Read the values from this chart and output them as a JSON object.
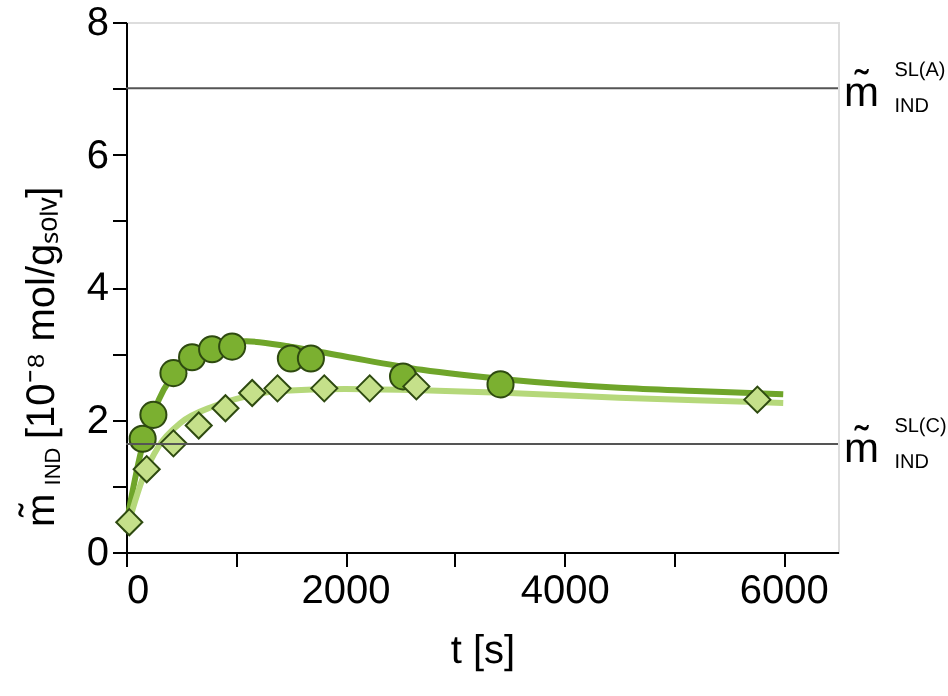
{
  "chart_data": {
    "type": "scatter",
    "xlabel": "t [s]",
    "ylabel": "m̃$_{IND}$ [10⁻⁸ mol/gₛₒₗᵥ]",
    "xlim": [
      0,
      6500
    ],
    "xticks": [
      0,
      {
        "value": 1000,
        "label": null
      },
      2000,
      {
        "value": 3000,
        "label": null
      },
      4000,
      {
        "value": 5000,
        "label": null
      },
      6000
    ],
    "ylim": [
      0,
      8
    ],
    "yticks": [
      0,
      {
        "value": 1,
        "label": null
      },
      2,
      {
        "value": 3,
        "label": null
      },
      4,
      {
        "value": 5,
        "label": null
      },
      6,
      {
        "value": 7,
        "label": null
      },
      8
    ],
    "grid": false,
    "series": [
      {
        "type": "line",
        "color": "#6fa52a",
        "x": [
          0,
          150,
          300,
          500,
          800,
          1100,
          1500,
          2000,
          2700,
          3500,
          4500,
          5200,
          6000
        ],
        "values": [
          0.4,
          1.6,
          2.3,
          2.8,
          3.1,
          3.18,
          3.1,
          2.95,
          2.75,
          2.6,
          2.48,
          2.43,
          2.38
        ]
      },
      {
        "type": "line",
        "color": "#b5d87a",
        "x": [
          0,
          150,
          300,
          500,
          800,
          1100,
          1400,
          2000,
          2700,
          3500,
          4500,
          5200,
          6000
        ],
        "values": [
          0.3,
          1.1,
          1.6,
          1.95,
          2.2,
          2.35,
          2.43,
          2.46,
          2.44,
          2.4,
          2.33,
          2.29,
          2.25
        ]
      },
      {
        "marker": "circle",
        "color": "#7bb030",
        "x": [
          152,
          250,
          433,
          603,
          786,
          969,
          1505,
          1688,
          2529,
          3419
        ],
        "values": [
          1.71,
          2.07,
          2.7,
          2.94,
          3.06,
          3.1,
          2.92,
          2.92,
          2.65,
          2.53
        ]
      },
      {
        "marker": "diamond",
        "color": "#c5e08a",
        "x": [
          30,
          189,
          433,
          664,
          908,
          1152,
          1383,
          1810,
          2225,
          2651,
          5764
        ],
        "values": [
          0.45,
          1.25,
          1.64,
          1.91,
          2.17,
          2.4,
          2.47,
          2.47,
          2.47,
          2.5,
          2.3
        ]
      }
    ],
    "ref_lines": [
      {
        "axis": "y",
        "value": 7.0,
        "label": "m̃$^{SL(A)}$$_{IND}$",
        "color": "#555555"
      },
      {
        "axis": "y",
        "value": 1.63,
        "label": "m̃$^{SL(C)}$$_{IND}$",
        "color": "#555555"
      }
    ]
  }
}
